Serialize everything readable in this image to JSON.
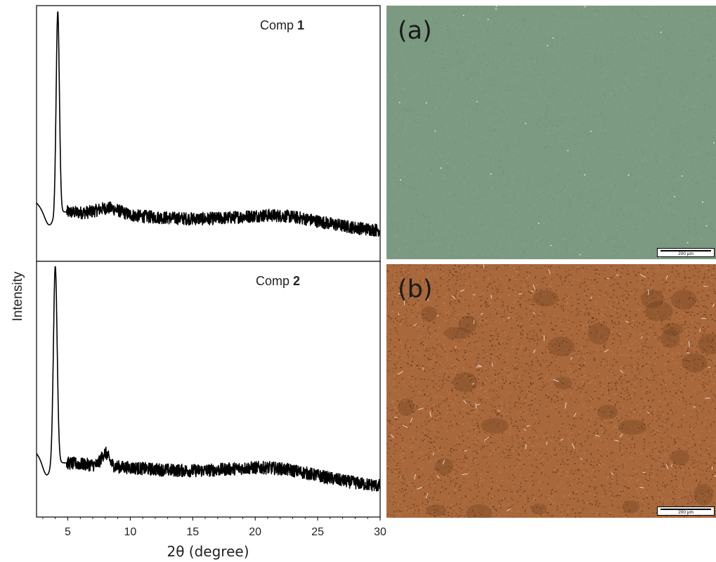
{
  "chart_data": {
    "type": "line",
    "xlabel": "2θ (degree)",
    "ylabel": "Intensity",
    "xlim": [
      2.5,
      30
    ],
    "xticks": [
      5,
      10,
      15,
      20,
      25,
      30
    ],
    "ylim": [
      0,
      1
    ],
    "grid": false,
    "panels": [
      {
        "label_prefix": "Comp ",
        "label_number": "1",
        "series": [
          {
            "peaks": [
              {
                "x": 4.2,
                "height": 0.79,
                "width": 0.13
              },
              {
                "x": 8.3,
                "height": 0.025,
                "width": 0.9
              },
              {
                "x": 22.0,
                "height": 0.035,
                "width": 3.2
              }
            ],
            "baseline_start": 0.2,
            "baseline_end": 0.12,
            "dip": {
              "x": 3.5,
              "depth": 0.06,
              "width": 0.35
            },
            "noise": 0.025
          }
        ]
      },
      {
        "label_prefix": "Comp ",
        "label_number": "2",
        "series": [
          {
            "peaks": [
              {
                "x": 4.0,
                "height": 0.77,
                "width": 0.15
              },
              {
                "x": 8.0,
                "height": 0.05,
                "width": 0.3
              },
              {
                "x": 21.5,
                "height": 0.04,
                "width": 3.5
              }
            ],
            "baseline_start": 0.22,
            "baseline_end": 0.12,
            "dip": {
              "x": 3.3,
              "depth": 0.06,
              "width": 0.3
            },
            "noise": 0.025
          }
        ]
      }
    ]
  },
  "micrographs": [
    {
      "label": "(a)",
      "scale_text": "200 µm",
      "color": "#7c9a82"
    },
    {
      "label": "(b)",
      "scale_text": "200 µm",
      "color": "#a8683c"
    }
  ]
}
